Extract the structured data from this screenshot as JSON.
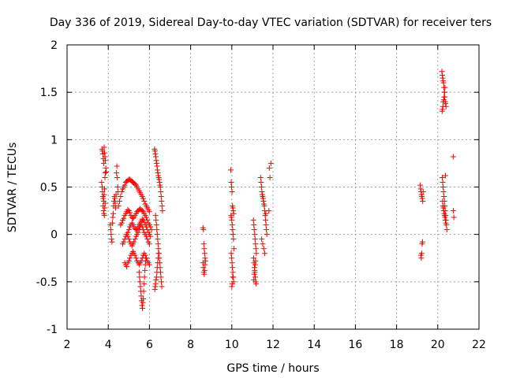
{
  "chart_data": {
    "type": "scatter",
    "title": "Day 336 of 2019, Sidereal Day-to-day VTEC variation (SDTVAR) for receiver ters",
    "xlabel": "GPS time / hours",
    "ylabel": "SDTVAR / TECUs",
    "xlim": [
      2,
      22
    ],
    "ylim": [
      -1,
      2
    ],
    "xticks": [
      2,
      4,
      6,
      8,
      10,
      12,
      14,
      16,
      18,
      20,
      22
    ],
    "yticks": [
      -1,
      -0.5,
      0,
      0.5,
      1,
      1.5,
      2
    ],
    "xtick_labels": [
      "2",
      "4",
      "6",
      "8",
      "10",
      "12",
      "14",
      "16",
      "18",
      "20",
      "22"
    ],
    "ytick_labels": [
      "-1",
      "-0.5",
      "0",
      "0.5",
      "1",
      "1.5",
      "2"
    ],
    "grid": true,
    "marker": "+",
    "color": "#ff0000",
    "series": [
      {
        "name": "SDTVAR",
        "x": [
          3.7,
          3.72,
          3.74,
          3.76,
          3.78,
          3.8,
          3.82,
          3.84,
          3.86,
          3.68,
          3.7,
          3.72,
          3.74,
          3.76,
          3.78,
          3.8,
          3.82,
          3.84,
          3.86,
          3.88,
          3.9,
          3.75,
          3.77,
          3.79,
          3.81,
          3.83,
          3.85,
          4.1,
          4.12,
          4.14,
          4.16,
          4.18,
          4.2,
          4.22,
          4.24,
          4.26,
          4.28,
          4.3,
          4.32,
          4.34,
          4.36,
          4.38,
          4.4,
          4.42,
          4.44,
          4.46,
          4.48,
          4.5,
          4.55,
          4.6,
          4.65,
          4.7,
          4.75,
          4.8,
          4.85,
          4.9,
          4.95,
          5.0,
          5.05,
          5.1,
          5.15,
          5.2,
          5.25,
          5.3,
          5.35,
          5.4,
          5.45,
          5.5,
          5.55,
          5.6,
          5.65,
          5.7,
          5.75,
          5.8,
          5.85,
          5.9,
          5.95,
          6.0,
          4.6,
          4.65,
          4.7,
          4.75,
          4.8,
          4.85,
          4.9,
          4.95,
          5.0,
          5.05,
          5.1,
          5.15,
          5.2,
          5.25,
          5.3,
          5.35,
          5.4,
          5.45,
          5.5,
          5.55,
          5.6,
          5.65,
          5.7,
          5.75,
          5.8,
          5.85,
          5.9,
          5.95,
          6.0,
          6.05,
          6.1,
          4.7,
          4.75,
          4.8,
          4.85,
          4.9,
          4.95,
          5.0,
          5.05,
          5.1,
          5.15,
          5.2,
          5.25,
          5.3,
          5.35,
          5.4,
          5.45,
          5.5,
          5.55,
          5.6,
          5.65,
          5.7,
          5.75,
          5.8,
          5.85,
          5.9,
          5.95,
          6.0,
          6.05,
          4.8,
          4.85,
          4.9,
          4.95,
          5.0,
          5.05,
          5.1,
          5.15,
          5.2,
          5.25,
          5.3,
          5.35,
          5.4,
          5.45,
          5.5,
          5.55,
          5.6,
          5.65,
          5.7,
          5.75,
          5.8,
          5.85,
          5.9,
          5.95,
          6.0,
          4.9,
          4.95,
          5.0,
          5.05,
          5.1,
          5.15,
          5.2,
          5.25,
          5.3,
          5.35,
          5.4,
          5.45,
          5.5,
          5.55,
          5.6,
          5.65,
          5.7,
          5.75,
          5.8,
          5.85,
          5.9,
          5.95,
          6.0,
          5.5,
          5.52,
          5.54,
          5.56,
          5.58,
          5.6,
          5.62,
          5.64,
          5.66,
          5.68,
          5.7,
          5.72,
          5.74,
          5.76,
          5.78,
          5.8,
          5.82,
          5.84,
          6.25,
          6.27,
          6.29,
          6.31,
          6.33,
          6.35,
          6.37,
          6.39,
          6.41,
          6.43,
          6.45,
          6.47,
          6.49,
          6.51,
          6.53,
          6.55,
          6.57,
          6.59,
          6.61,
          6.63,
          6.3,
          6.32,
          6.34,
          6.36,
          6.38,
          6.4,
          6.42,
          6.44,
          6.46,
          6.48,
          6.5,
          6.52,
          6.54,
          6.56,
          6.58,
          6.6,
          6.26,
          6.28,
          6.3,
          6.32,
          6.34,
          6.36,
          6.38,
          6.4,
          6.42,
          6.44,
          8.6,
          8.62,
          8.64,
          8.66,
          8.68,
          8.7,
          8.6,
          8.62,
          8.64,
          8.66,
          8.68,
          8.7,
          8.72,
          9.95,
          9.97,
          9.99,
          10.01,
          10.03,
          10.05,
          10.07,
          10.09,
          9.96,
          9.98,
          10.0,
          10.02,
          10.04,
          10.06,
          10.08,
          10.1,
          9.97,
          9.99,
          10.01,
          10.03,
          10.05,
          10.07,
          10.09,
          10.0,
          10.02,
          10.04,
          11.05,
          11.07,
          11.09,
          11.11,
          11.13,
          11.15,
          11.17,
          11.19,
          11.06,
          11.08,
          11.1,
          11.12,
          11.14,
          11.16,
          11.18,
          11.07,
          11.09,
          11.11,
          11.13,
          11.15,
          11.4,
          11.42,
          11.44,
          11.46,
          11.48,
          11.5,
          11.52,
          11.54,
          11.56,
          11.58,
          11.6,
          11.62,
          11.64,
          11.66,
          11.68,
          11.7,
          11.45,
          11.5,
          11.55,
          11.6,
          11.65,
          11.8,
          11.85,
          11.9,
          11.82,
          19.15,
          19.17,
          19.19,
          19.21,
          19.23,
          19.25,
          19.27,
          19.29,
          19.18,
          19.2,
          19.22,
          19.24,
          19.26,
          20.2,
          20.22,
          20.24,
          20.26,
          20.28,
          20.3,
          20.32,
          20.34,
          20.36,
          20.38,
          20.4,
          20.21,
          20.23,
          20.25,
          20.27,
          20.29,
          20.31,
          20.33,
          20.35,
          20.37,
          20.22,
          20.24,
          20.26,
          20.28,
          20.3,
          20.32,
          20.34,
          20.36,
          20.38,
          20.4,
          20.42,
          20.44,
          20.23,
          20.25,
          20.27,
          20.29,
          20.31,
          20.33,
          20.35,
          20.37,
          20.39,
          20.75,
          20.75,
          20.78
        ],
        "y": [
          0.9,
          0.88,
          0.85,
          0.8,
          0.75,
          0.92,
          0.86,
          0.82,
          0.78,
          0.55,
          0.5,
          0.45,
          0.4,
          0.38,
          0.35,
          0.42,
          0.48,
          0.6,
          0.65,
          0.7,
          0.66,
          0.3,
          0.25,
          0.22,
          0.2,
          0.28,
          0.33,
          0.1,
          0.05,
          0.0,
          -0.05,
          -0.08,
          0.12,
          0.18,
          0.22,
          0.3,
          0.35,
          0.4,
          0.38,
          0.33,
          0.28,
          0.42,
          0.65,
          0.72,
          0.6,
          0.5,
          0.45,
          0.3,
          0.35,
          0.4,
          0.45,
          0.48,
          0.5,
          0.52,
          0.55,
          0.56,
          0.57,
          0.58,
          0.58,
          0.57,
          0.56,
          0.55,
          0.54,
          0.53,
          0.52,
          0.5,
          0.48,
          0.46,
          0.44,
          0.42,
          0.4,
          0.38,
          0.35,
          0.32,
          0.3,
          0.28,
          0.26,
          0.24,
          0.1,
          0.12,
          0.15,
          0.17,
          0.2,
          0.22,
          0.24,
          0.26,
          0.25,
          0.23,
          0.2,
          0.18,
          0.17,
          0.18,
          0.2,
          0.22,
          0.24,
          0.25,
          0.26,
          0.27,
          0.26,
          0.25,
          0.24,
          0.22,
          0.2,
          0.18,
          0.15,
          0.12,
          0.1,
          0.08,
          0.05,
          -0.1,
          -0.08,
          -0.05,
          -0.02,
          0.0,
          0.02,
          0.05,
          0.08,
          0.1,
          0.12,
          0.1,
          0.08,
          0.06,
          0.05,
          0.06,
          0.08,
          0.1,
          0.12,
          0.14,
          0.16,
          0.15,
          0.13,
          0.1,
          0.08,
          0.05,
          0.02,
          0.0,
          -0.02,
          -0.3,
          -0.32,
          -0.34,
          -0.3,
          -0.28,
          -0.25,
          -0.22,
          -0.2,
          -0.18,
          -0.2,
          -0.22,
          -0.25,
          -0.28,
          -0.3,
          -0.32,
          -0.3,
          -0.28,
          -0.25,
          -0.22,
          -0.2,
          -0.22,
          -0.25,
          -0.28,
          -0.3,
          -0.32,
          0.0,
          -0.02,
          -0.05,
          -0.08,
          -0.1,
          -0.12,
          -0.1,
          -0.08,
          -0.05,
          -0.02,
          0.0,
          0.02,
          0.05,
          0.08,
          0.1,
          0.08,
          0.05,
          0.02,
          0.0,
          -0.02,
          -0.05,
          -0.08,
          -0.1,
          -0.4,
          -0.45,
          -0.5,
          -0.55,
          -0.6,
          -0.65,
          -0.7,
          -0.75,
          -0.78,
          -0.72,
          -0.68,
          -0.6,
          -0.52,
          -0.45,
          -0.38,
          -0.32,
          -0.28,
          -0.25,
          0.9,
          0.88,
          0.85,
          0.82,
          0.78,
          0.75,
          0.72,
          0.68,
          0.65,
          0.62,
          0.6,
          0.58,
          0.55,
          0.52,
          0.5,
          0.45,
          0.4,
          0.35,
          0.3,
          0.25,
          0.2,
          0.15,
          0.1,
          0.05,
          0.0,
          -0.05,
          -0.1,
          -0.15,
          -0.2,
          -0.25,
          -0.3,
          -0.35,
          -0.4,
          -0.45,
          -0.5,
          -0.55,
          -0.58,
          -0.55,
          -0.52,
          -0.48,
          -0.45,
          -0.4,
          -0.35,
          -0.3,
          -0.25,
          -0.2,
          0.07,
          0.05,
          -0.1,
          -0.15,
          -0.2,
          -0.25,
          -0.3,
          -0.35,
          -0.4,
          -0.42,
          -0.38,
          -0.32,
          -0.28,
          0.68,
          0.55,
          0.5,
          0.45,
          0.3,
          0.28,
          0.25,
          0.22,
          0.2,
          0.18,
          0.15,
          0.1,
          0.05,
          0.0,
          -0.05,
          -0.15,
          -0.2,
          -0.25,
          -0.3,
          -0.35,
          -0.4,
          -0.45,
          -0.5,
          -0.55,
          -0.52,
          -0.45,
          0.15,
          0.1,
          0.05,
          0.0,
          -0.05,
          -0.1,
          -0.15,
          -0.2,
          -0.25,
          -0.3,
          -0.35,
          -0.4,
          -0.45,
          -0.5,
          -0.52,
          -0.48,
          -0.42,
          -0.38,
          -0.32,
          -0.28,
          0.6,
          0.55,
          0.5,
          0.45,
          0.42,
          0.4,
          0.38,
          0.35,
          0.32,
          0.3,
          0.25,
          0.2,
          0.15,
          0.1,
          0.05,
          0.0,
          -0.05,
          -0.1,
          -0.15,
          -0.2,
          0.22,
          0.25,
          0.6,
          0.75,
          0.7,
          0.52,
          0.48,
          0.45,
          0.42,
          0.4,
          0.38,
          0.35,
          0.45,
          -0.22,
          -0.25,
          -0.2,
          -0.1,
          -0.08,
          1.72,
          1.68,
          1.65,
          1.62,
          1.6,
          1.55,
          1.5,
          1.45,
          1.4,
          1.38,
          1.35,
          1.3,
          1.32,
          1.35,
          1.4,
          1.42,
          1.45,
          1.5,
          1.55,
          0.62,
          0.6,
          0.55,
          0.5,
          0.45,
          0.4,
          0.35,
          0.3,
          0.25,
          0.2,
          0.15,
          0.1,
          0.05,
          0.35,
          0.3,
          0.28,
          0.25,
          0.22,
          0.2,
          0.18,
          0.15,
          0.12,
          0.82,
          0.25,
          0.18
        ]
      }
    ]
  }
}
